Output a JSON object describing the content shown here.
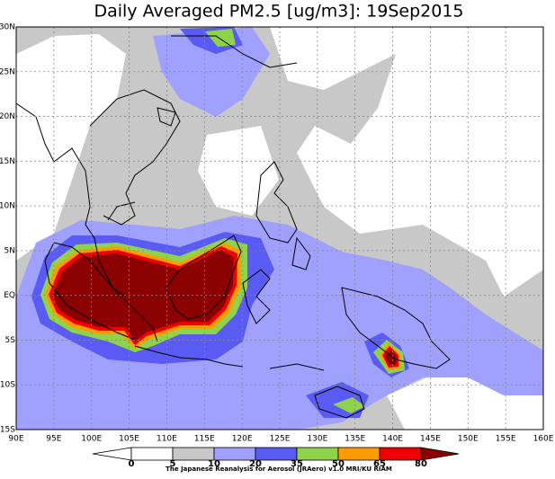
{
  "title": "Daily Averaged PM2.5 [ug/m3]: 19Sep2015",
  "lat_ticks": [
    "30N",
    "25N",
    "20N",
    "15N",
    "10N",
    "5N",
    "EQ",
    "5S",
    "10S",
    "15S"
  ],
  "lon_ticks": [
    "90E",
    "95E",
    "100E",
    "105E",
    "110E",
    "115E",
    "120E",
    "125E",
    "130E",
    "135E",
    "140E",
    "145E",
    "150E",
    "155E",
    "160E"
  ],
  "colorbar": {
    "levels": [
      0,
      5,
      10,
      20,
      35,
      50,
      65,
      80
    ],
    "colors": [
      "#ffffff",
      "#ffffff",
      "#c8c8c8",
      "#a0a0ff",
      "#5a5af5",
      "#8fd34a",
      "#ff9a00",
      "#f00000",
      "#8b0000"
    ]
  },
  "credit": "The Japanese Reanalysis for Aerosol (JRAero) v1.0 MRI/KU RIAM"
}
